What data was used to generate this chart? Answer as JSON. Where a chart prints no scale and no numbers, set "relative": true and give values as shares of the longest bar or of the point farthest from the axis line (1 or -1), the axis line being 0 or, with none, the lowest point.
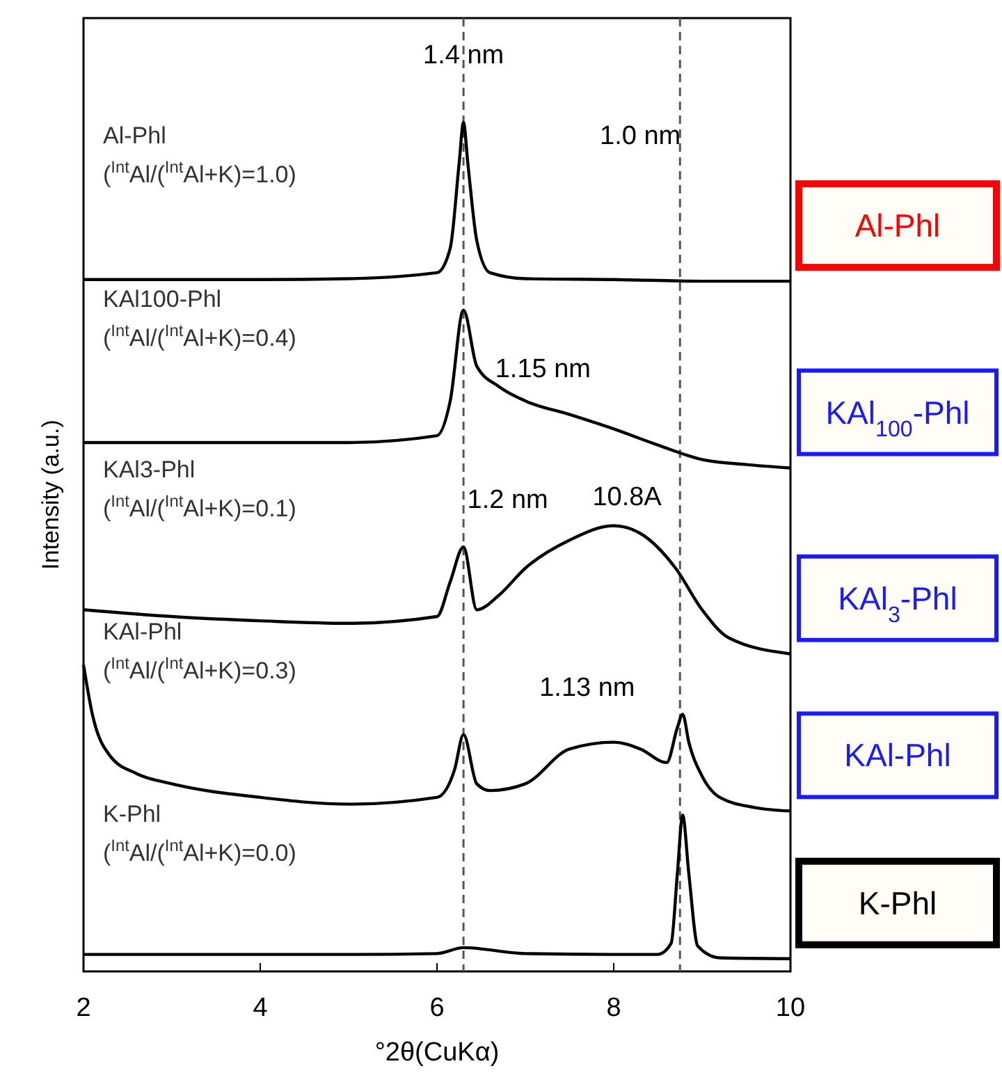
{
  "chart_data": {
    "type": "line",
    "relative": true,
    "xlabel": "°2θ(CuKα)",
    "ylabel": "Intensity (a.u.)",
    "xlim": [
      2,
      10
    ],
    "xticks": [
      2,
      4,
      6,
      8,
      10
    ],
    "grid": false,
    "marker": "none",
    "line_style": "solid",
    "series": [
      {
        "color": "#000000",
        "x": [
          2,
          4,
          5,
          6,
          6.15,
          6.25,
          6.3,
          6.35,
          6.45,
          6.6,
          7,
          8,
          9,
          10
        ],
        "values": [
          0.815,
          0.815,
          0.816,
          0.823,
          0.852,
          0.951,
          1,
          0.951,
          0.861,
          0.823,
          0.816,
          0.815,
          0.813,
          0.813
        ]
      },
      {
        "color": "#000000",
        "x": [
          2,
          3,
          4,
          5,
          6,
          6.15,
          6.3,
          6.45,
          6.7,
          7,
          7.5,
          8,
          8.5,
          9,
          9.5,
          10
        ],
        "values": [
          0.623,
          0.623,
          0.623,
          0.623,
          0.631,
          0.672,
          0.779,
          0.713,
          0.689,
          0.672,
          0.656,
          0.639,
          0.62,
          0.603,
          0.597,
          0.593
        ]
      },
      {
        "color": "#000000",
        "x": [
          2,
          3,
          4,
          5,
          6,
          6.15,
          6.3,
          6.45,
          6.7,
          7,
          7.5,
          8,
          8.3,
          8.7,
          9,
          9.3,
          10
        ],
        "values": [
          0.426,
          0.418,
          0.413,
          0.41,
          0.418,
          0.459,
          0.5,
          0.426,
          0.443,
          0.475,
          0.508,
          0.525,
          0.516,
          0.475,
          0.426,
          0.393,
          0.374
        ]
      },
      {
        "color": "#000000",
        "x": [
          2,
          2.1,
          2.3,
          2.6,
          3,
          4,
          5,
          6,
          6.2,
          6.3,
          6.45,
          6.6,
          7,
          7.5,
          8,
          8.3,
          8.6,
          8.72,
          8.78,
          8.85,
          9,
          9.2,
          9.6,
          10
        ],
        "values": [
          0.361,
          0.303,
          0.254,
          0.233,
          0.221,
          0.205,
          0.197,
          0.205,
          0.238,
          0.279,
          0.221,
          0.213,
          0.221,
          0.262,
          0.27,
          0.262,
          0.246,
          0.287,
          0.303,
          0.27,
          0.23,
          0.205,
          0.193,
          0.189
        ]
      },
      {
        "color": "#000000",
        "x": [
          2,
          3,
          4,
          5,
          6,
          6.3,
          7,
          8,
          8.5,
          8.65,
          8.72,
          8.78,
          8.85,
          8.95,
          9.2,
          10
        ],
        "values": [
          0.02,
          0.02,
          0.02,
          0.02,
          0.021,
          0.028,
          0.021,
          0.02,
          0.02,
          0.033,
          0.115,
          0.184,
          0.115,
          0.03,
          0.016,
          0.015
        ]
      }
    ],
    "ref_lines": [
      {
        "axis": "x",
        "value": 6.3,
        "color": "#555555",
        "line_style": "dashed"
      },
      {
        "axis": "x",
        "value": 8.75,
        "color": "#555555",
        "line_style": "dashed"
      }
    ],
    "annotations": [
      "Al-Phl",
      "KAl100-Phl",
      "KAl3-Phl",
      "KAl-Phl",
      "K-Phl",
      "($^{Int}$Al/($^{Int}$Al+K)=1.0)",
      "($^{Int}$Al/($^{Int}$Al+K)=0.4)",
      "($^{Int}$Al/($^{Int}$Al+K)=0.1)",
      "($^{Int}$Al/($^{Int}$Al+K)=0.3)",
      "($^{Int}$Al/($^{Int}$Al+K)=0.0)",
      "Al-Phl",
      "KAl$_{100}$-Phl",
      "KAl$_{3}$-Phl",
      "KAl-Phl",
      "K-Phl",
      "1.4 nm",
      "1.0 nm",
      "1.15 nm",
      "1.2 nm",
      "10.8A",
      "1.13 nm"
    ]
  }
}
